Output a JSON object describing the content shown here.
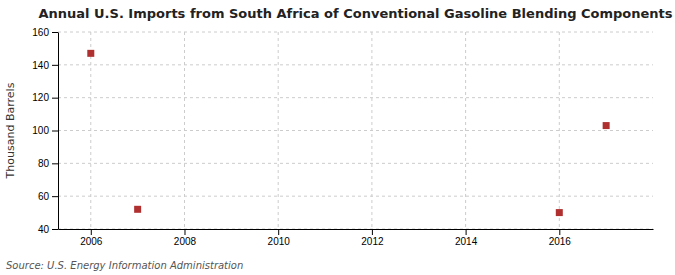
{
  "chart_data": {
    "type": "scatter",
    "title": "Annual U.S. Imports from South Africa of Conventional Gasoline Blending Components",
    "ylabel": "Thousand Barrels",
    "annotations": [
      "Source: U.S. Energy Information Administration"
    ],
    "x": [
      2006,
      2007,
      2016,
      2017
    ],
    "values": [
      147,
      52,
      50,
      103
    ],
    "color": "#b03030",
    "marker": "square",
    "xlim": [
      2005.3,
      2018.0
    ],
    "ylim": [
      40,
      160
    ],
    "xticks": [
      2006,
      2008,
      2010,
      2012,
      2014,
      2016
    ],
    "yticks": [
      40,
      60,
      80,
      100,
      120,
      140,
      160
    ],
    "grid": true
  }
}
